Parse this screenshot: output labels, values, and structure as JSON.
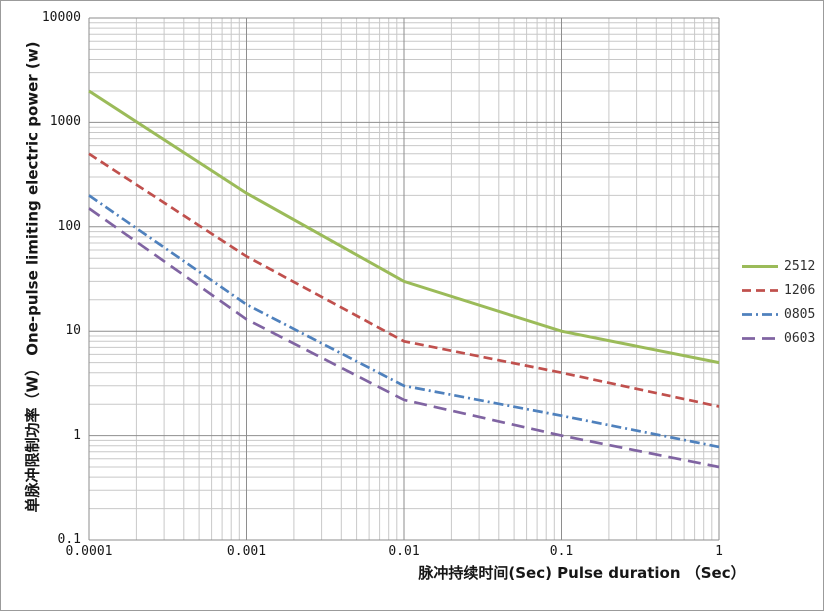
{
  "chart_data": {
    "type": "line",
    "title": "",
    "xlabel": "脉冲持续时间(Sec) Pulse duration （Sec）",
    "ylabel": "单脉冲限制功率（W）  One-pulse limiting electric power (w)",
    "x_scale": "log",
    "y_scale": "log",
    "xlim": [
      0.0001,
      1
    ],
    "ylim": [
      0.1,
      10000
    ],
    "x_ticks": [
      "0.0001",
      "0.001",
      "0.01",
      "0.1",
      "1"
    ],
    "y_ticks": [
      "10000",
      "1000",
      "100",
      "10",
      "1",
      "0.1"
    ],
    "grid": "log major and minor gridlines, gray",
    "legend_position": "right-middle",
    "x": [
      0.0001,
      0.001,
      0.01,
      0.1,
      1
    ],
    "series": [
      {
        "name": "2512",
        "color": "#9BBB59",
        "line_style": "solid",
        "values": [
          2000,
          210,
          30,
          10,
          5
        ]
      },
      {
        "name": "1206",
        "color": "#C0504D",
        "line_style": "dashed",
        "values": [
          500,
          52,
          8,
          4,
          1.9
        ]
      },
      {
        "name": "0805",
        "color": "#4F81BD",
        "line_style": "dash-dot",
        "values": [
          200,
          18,
          3,
          1.55,
          0.78
        ]
      },
      {
        "name": "0603",
        "color": "#8064A2",
        "line_style": "long-dash",
        "values": [
          150,
          13,
          2.2,
          1.0,
          0.5
        ]
      }
    ],
    "grid_colors": {
      "minor": "#C8C8C8",
      "major": "#8E8E8E"
    }
  }
}
